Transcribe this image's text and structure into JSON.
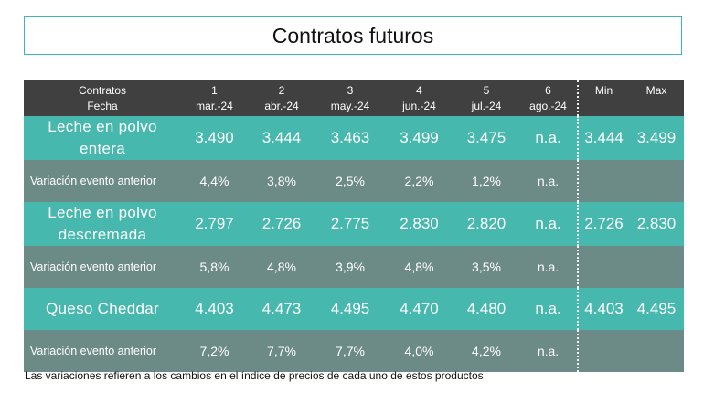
{
  "title": "Contratos futuros",
  "header": {
    "row_label_1": "Contratos",
    "row_label_2": "Fecha",
    "contracts": [
      {
        "num": "1",
        "date": "mar.-24"
      },
      {
        "num": "2",
        "date": "abr.-24"
      },
      {
        "num": "3",
        "date": "may.-24"
      },
      {
        "num": "4",
        "date": "jun.-24"
      },
      {
        "num": "5",
        "date": "jul.-24"
      },
      {
        "num": "6",
        "date": "ago.-24"
      }
    ],
    "min_label": "Min",
    "max_label": "Max"
  },
  "rows": [
    {
      "label_line1": "Leche en polvo",
      "label_line2": "entera",
      "values": [
        "3.490",
        "3.444",
        "3.463",
        "3.499",
        "3.475",
        "n.a."
      ],
      "min": "3.444",
      "max": "3.499"
    },
    {
      "label": "Variación evento anterior",
      "values": [
        "4,4%",
        "3,8%",
        "2,5%",
        "2,2%",
        "1,2%",
        "n.a."
      ]
    },
    {
      "label_line1": "Leche en polvo",
      "label_line2": "descremada",
      "values": [
        "2.797",
        "2.726",
        "2.775",
        "2.830",
        "2.820",
        "n.a."
      ],
      "min": "2.726",
      "max": "2.830"
    },
    {
      "label": "Variación evento anterior",
      "values": [
        "5,8%",
        "4,8%",
        "3,9%",
        "4,8%",
        "3,5%",
        "n.a."
      ]
    },
    {
      "label": "Queso Cheddar",
      "values": [
        "4.403",
        "4.473",
        "4.495",
        "4.470",
        "4.480",
        "n.a."
      ],
      "min": "4.403",
      "max": "4.495"
    },
    {
      "label": "Variación evento anterior",
      "values": [
        "7,2%",
        "7,7%",
        "7,7%",
        "4,0%",
        "4,2%",
        "n.a."
      ]
    }
  ],
  "footnote": "Las variaciones refieren a los cambios en el índice de precios de cada uno de estos productos",
  "colors": {
    "header": "#404040",
    "product_row": "#46b8ae",
    "variation_row": "#6d8b86",
    "title_border": "#3fb8ab"
  }
}
